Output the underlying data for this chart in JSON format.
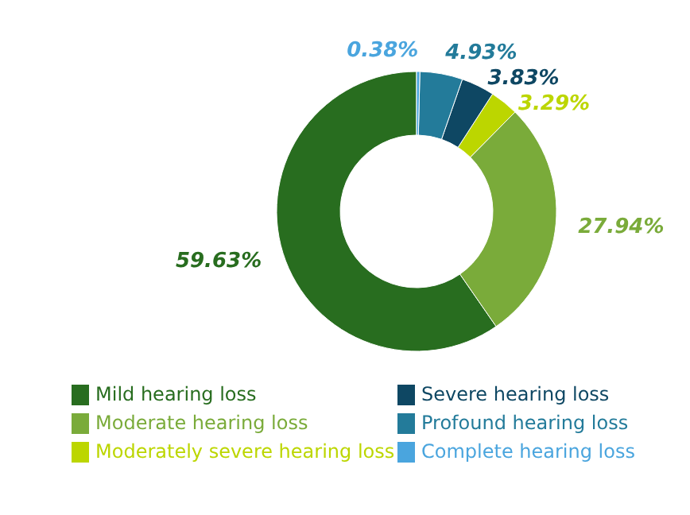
{
  "chart_data": {
    "type": "donut",
    "categories": [
      "Mild hearing loss",
      "Moderate hearing loss",
      "Moderately severe hearing loss",
      "Severe hearing loss",
      "Profound hearing loss",
      "Complete hearing loss"
    ],
    "values": [
      59.63,
      27.94,
      3.29,
      3.83,
      4.93,
      0.38
    ],
    "colors": [
      "#286d1f",
      "#7aab3a",
      "#bcd600",
      "#0e4763",
      "#237b9a",
      "#4aa5de"
    ],
    "value_labels": [
      "59.63%",
      "27.94%",
      "3.29%",
      "3.83%",
      "4.93%",
      "0.38%"
    ],
    "legend": "bottom"
  }
}
